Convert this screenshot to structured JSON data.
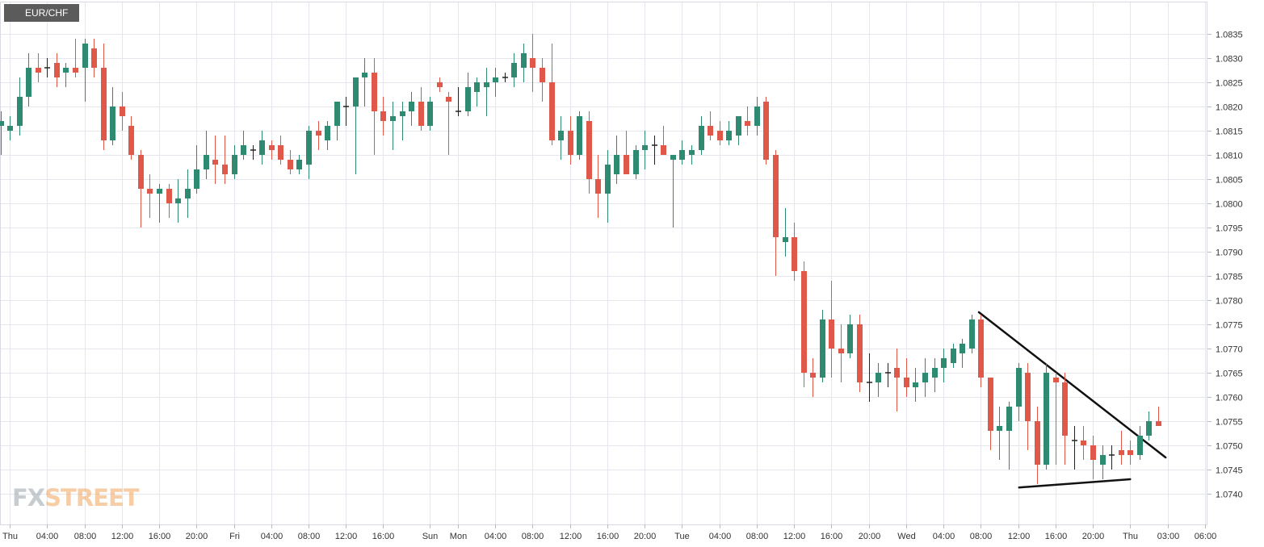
{
  "symbol": "EUR/CHF",
  "watermark": {
    "part1": "FX",
    "part2": "STREET"
  },
  "colors": {
    "up": "#2f8a72",
    "down": "#e0584a",
    "neutral": "#222222",
    "grid": "#e6e6ee",
    "trendline": "#111111"
  },
  "chart_data": {
    "type": "candlestick",
    "interval_hours": 1,
    "ylim": [
      1.0734,
      1.0841
    ],
    "y_ticks": [
      1.074,
      1.0745,
      1.075,
      1.0755,
      1.076,
      1.0765,
      1.077,
      1.0775,
      1.078,
      1.0785,
      1.079,
      1.0795,
      1.08,
      1.0805,
      1.081,
      1.0815,
      1.082,
      1.0825,
      1.083,
      1.0835
    ],
    "x_tick_labels": [
      {
        "index": 1,
        "label": "Thu"
      },
      {
        "index": 5,
        "label": "04:00"
      },
      {
        "index": 9,
        "label": "08:00"
      },
      {
        "index": 13,
        "label": "12:00"
      },
      {
        "index": 17,
        "label": "16:00"
      },
      {
        "index": 21,
        "label": "20:00"
      },
      {
        "index": 25,
        "label": "Fri"
      },
      {
        "index": 29,
        "label": "04:00"
      },
      {
        "index": 33,
        "label": "08:00"
      },
      {
        "index": 37,
        "label": "12:00"
      },
      {
        "index": 41,
        "label": "16:00"
      },
      {
        "index": 46,
        "label": "Sun"
      },
      {
        "index": 49,
        "label": "Mon"
      },
      {
        "index": 53,
        "label": "04:00"
      },
      {
        "index": 57,
        "label": "08:00"
      },
      {
        "index": 61,
        "label": "12:00"
      },
      {
        "index": 65,
        "label": "16:00"
      },
      {
        "index": 69,
        "label": "20:00"
      },
      {
        "index": 73,
        "label": "Tue"
      },
      {
        "index": 77,
        "label": "04:00"
      },
      {
        "index": 81,
        "label": "08:00"
      },
      {
        "index": 85,
        "label": "12:00"
      },
      {
        "index": 89,
        "label": "16:00"
      },
      {
        "index": 93,
        "label": "20:00"
      },
      {
        "index": 97,
        "label": "Wed"
      },
      {
        "index": 101,
        "label": "04:00"
      },
      {
        "index": 105,
        "label": "08:00"
      },
      {
        "index": 109,
        "label": "12:00"
      },
      {
        "index": 113,
        "label": "16:00"
      },
      {
        "index": 117,
        "label": "20:00"
      },
      {
        "index": 121,
        "label": "Thu"
      },
      {
        "index": 125,
        "label": "03:00"
      },
      {
        "index": 129,
        "label": "06:00"
      }
    ],
    "ohlc": [
      [
        1.0816,
        1.0819,
        1.081,
        1.0817
      ],
      [
        1.0815,
        1.0818,
        1.0813,
        1.0816
      ],
      [
        1.0816,
        1.0826,
        1.0814,
        1.0822
      ],
      [
        1.0822,
        1.0831,
        1.082,
        1.0828
      ],
      [
        1.0828,
        1.0831,
        1.0825,
        1.0827
      ],
      [
        1.0828,
        1.083,
        1.0826,
        1.0828
      ],
      [
        1.0829,
        1.0831,
        1.0824,
        1.0826
      ],
      [
        1.0827,
        1.0829,
        1.0824,
        1.0828
      ],
      [
        1.0828,
        1.0834,
        1.0826,
        1.0827
      ],
      [
        1.0828,
        1.0834,
        1.0821,
        1.0833
      ],
      [
        1.0832,
        1.0834,
        1.0826,
        1.0828
      ],
      [
        1.0828,
        1.0833,
        1.0811,
        1.0813
      ],
      [
        1.0813,
        1.0824,
        1.0812,
        1.082
      ],
      [
        1.082,
        1.0823,
        1.0815,
        1.0818
      ],
      [
        1.0816,
        1.0818,
        1.0809,
        1.081
      ],
      [
        1.081,
        1.0811,
        1.0795,
        1.0803
      ],
      [
        1.0803,
        1.0806,
        1.0797,
        1.0802
      ],
      [
        1.0802,
        1.0804,
        1.0796,
        1.0803
      ],
      [
        1.0803,
        1.0804,
        1.0797,
        1.08
      ],
      [
        1.08,
        1.0805,
        1.0796,
        1.0801
      ],
      [
        1.0801,
        1.0807,
        1.0797,
        1.0803
      ],
      [
        1.0803,
        1.0812,
        1.0802,
        1.0807
      ],
      [
        1.0807,
        1.0815,
        1.0805,
        1.081
      ],
      [
        1.0809,
        1.0814,
        1.0804,
        1.0808
      ],
      [
        1.0808,
        1.0814,
        1.0804,
        1.0806
      ],
      [
        1.0806,
        1.0812,
        1.0805,
        1.081
      ],
      [
        1.081,
        1.0815,
        1.0809,
        1.0812
      ],
      [
        1.0811,
        1.0812,
        1.0809,
        1.0811
      ],
      [
        1.081,
        1.0815,
        1.0808,
        1.0813
      ],
      [
        1.0812,
        1.0813,
        1.0809,
        1.0811
      ],
      [
        1.0812,
        1.0814,
        1.0808,
        1.0809
      ],
      [
        1.0809,
        1.0811,
        1.0806,
        1.0807
      ],
      [
        1.0807,
        1.081,
        1.0806,
        1.0809
      ],
      [
        1.0808,
        1.0816,
        1.0805,
        1.0815
      ],
      [
        1.0815,
        1.0817,
        1.0811,
        1.0814
      ],
      [
        1.0813,
        1.0817,
        1.0811,
        1.0816
      ],
      [
        1.0816,
        1.0821,
        1.0813,
        1.0821
      ],
      [
        1.082,
        1.0822,
        1.0816,
        1.082
      ],
      [
        1.082,
        1.0826,
        1.0806,
        1.0826
      ],
      [
        1.0826,
        1.083,
        1.082,
        1.0827
      ],
      [
        1.0827,
        1.083,
        1.081,
        1.0819
      ],
      [
        1.0819,
        1.0822,
        1.0814,
        1.0817
      ],
      [
        1.0817,
        1.0821,
        1.0811,
        1.0818
      ],
      [
        1.0818,
        1.0821,
        1.0813,
        1.0819
      ],
      [
        1.0819,
        1.0823,
        1.0816,
        1.0821
      ],
      [
        1.0821,
        1.0824,
        1.0815,
        1.0816
      ],
      [
        1.0816,
        1.0822,
        1.0815,
        1.0821
      ],
      [
        1.0825,
        1.0826,
        1.0823,
        1.0824
      ],
      [
        1.0822,
        1.0823,
        1.081,
        1.0821
      ],
      [
        1.0819,
        1.0824,
        1.0818,
        1.0819
      ],
      [
        1.0819,
        1.0827,
        1.0818,
        1.0824
      ],
      [
        1.0823,
        1.0826,
        1.082,
        1.0825
      ],
      [
        1.0824,
        1.0828,
        1.0818,
        1.0825
      ],
      [
        1.0825,
        1.0828,
        1.0822,
        1.0826
      ],
      [
        1.0826,
        1.0827,
        1.0825,
        1.0826
      ],
      [
        1.0826,
        1.0831,
        1.0824,
        1.0829
      ],
      [
        1.0828,
        1.0833,
        1.0825,
        1.0831
      ],
      [
        1.083,
        1.0835,
        1.0823,
        1.0828
      ],
      [
        1.0828,
        1.083,
        1.0821,
        1.0825
      ],
      [
        1.0825,
        1.0833,
        1.0812,
        1.0813
      ],
      [
        1.0813,
        1.0818,
        1.0809,
        1.0815
      ],
      [
        1.0815,
        1.0818,
        1.0808,
        1.081
      ],
      [
        1.081,
        1.0819,
        1.0809,
        1.0818
      ],
      [
        1.0817,
        1.0819,
        1.0802,
        1.0805
      ],
      [
        1.0805,
        1.081,
        1.0797,
        1.0802
      ],
      [
        1.0802,
        1.0811,
        1.0796,
        1.0808
      ],
      [
        1.0806,
        1.0814,
        1.0804,
        1.081
      ],
      [
        1.081,
        1.0815,
        1.0806,
        1.0806
      ],
      [
        1.0806,
        1.0812,
        1.0805,
        1.0811
      ],
      [
        1.0811,
        1.0815,
        1.0807,
        1.0812
      ],
      [
        1.0812,
        1.0814,
        1.0808,
        1.0812
      ],
      [
        1.0812,
        1.0816,
        1.081,
        1.081
      ],
      [
        1.0809,
        1.081,
        1.0795,
        1.081
      ],
      [
        1.0809,
        1.0813,
        1.0808,
        1.0811
      ],
      [
        1.081,
        1.0812,
        1.0808,
        1.0811
      ],
      [
        1.0811,
        1.0818,
        1.081,
        1.0816
      ],
      [
        1.0816,
        1.0819,
        1.0813,
        1.0814
      ],
      [
        1.0815,
        1.0817,
        1.0812,
        1.0813
      ],
      [
        1.0813,
        1.0817,
        1.0812,
        1.0815
      ],
      [
        1.0814,
        1.0818,
        1.0812,
        1.0818
      ],
      [
        1.0817,
        1.082,
        1.0814,
        1.0816
      ],
      [
        1.0816,
        1.0822,
        1.0814,
        1.082
      ],
      [
        1.0821,
        1.0822,
        1.0808,
        1.0809
      ],
      [
        1.081,
        1.0811,
        1.0785,
        1.0793
      ],
      [
        1.0792,
        1.0799,
        1.0789,
        1.0793
      ],
      [
        1.0793,
        1.0796,
        1.0784,
        1.0786
      ],
      [
        1.0786,
        1.0788,
        1.0762,
        1.0765
      ],
      [
        1.0765,
        1.0768,
        1.076,
        1.0764
      ],
      [
        1.0764,
        1.0778,
        1.0763,
        1.0776
      ],
      [
        1.0776,
        1.0784,
        1.0764,
        1.077
      ],
      [
        1.077,
        1.0775,
        1.0763,
        1.0769
      ],
      [
        1.0769,
        1.0777,
        1.0768,
        1.0775
      ],
      [
        1.0775,
        1.0777,
        1.0761,
        1.0763
      ],
      [
        1.0763,
        1.0769,
        1.0759,
        1.0763
      ],
      [
        1.0763,
        1.0767,
        1.076,
        1.0765
      ],
      [
        1.0765,
        1.0767,
        1.0762,
        1.0765
      ],
      [
        1.0766,
        1.077,
        1.0757,
        1.0764
      ],
      [
        1.0764,
        1.0768,
        1.076,
        1.0762
      ],
      [
        1.0762,
        1.0766,
        1.0759,
        1.0763
      ],
      [
        1.0763,
        1.0768,
        1.076,
        1.0765
      ],
      [
        1.0764,
        1.0768,
        1.0761,
        1.0766
      ],
      [
        1.0766,
        1.077,
        1.0763,
        1.0768
      ],
      [
        1.0767,
        1.0771,
        1.0766,
        1.077
      ],
      [
        1.0769,
        1.0772,
        1.0766,
        1.0771
      ],
      [
        1.077,
        1.0777,
        1.0769,
        1.0776
      ],
      [
        1.0776,
        1.0777,
        1.0762,
        1.0764
      ],
      [
        1.0764,
        1.0764,
        1.0749,
        1.0753
      ],
      [
        1.0753,
        1.0758,
        1.0747,
        1.0754
      ],
      [
        1.0753,
        1.0759,
        1.0745,
        1.0758
      ],
      [
        1.0758,
        1.0767,
        1.0755,
        1.0766
      ],
      [
        1.0765,
        1.0767,
        1.0749,
        1.0755
      ],
      [
        1.0755,
        1.0758,
        1.0742,
        1.0746
      ],
      [
        1.0746,
        1.0767,
        1.0745,
        1.0765
      ],
      [
        1.0764,
        1.0765,
        1.0746,
        1.0763
      ],
      [
        1.0763,
        1.0765,
        1.0746,
        1.0752
      ],
      [
        1.0751,
        1.0754,
        1.0745,
        1.0751
      ],
      [
        1.0751,
        1.0754,
        1.0747,
        1.075
      ],
      [
        1.075,
        1.0752,
        1.0743,
        1.0747
      ],
      [
        1.0746,
        1.075,
        1.0743,
        1.0748
      ],
      [
        1.0748,
        1.075,
        1.0745,
        1.0748
      ],
      [
        1.0749,
        1.0753,
        1.0746,
        1.0748
      ],
      [
        1.0749,
        1.0751,
        1.0746,
        1.0748
      ],
      [
        1.0748,
        1.0754,
        1.0747,
        1.0752
      ],
      [
        1.0752,
        1.0757,
        1.0751,
        1.0755
      ],
      [
        1.0755,
        1.0758,
        1.0754,
        1.0754
      ]
    ],
    "trendlines": [
      {
        "name": "descending-trendline",
        "start": {
          "index": 104.8,
          "price": 1.07775
        },
        "end": {
          "index": 124.8,
          "price": 1.07475
        }
      },
      {
        "name": "ascending-support-line",
        "start": {
          "index": 109.1,
          "price": 1.07413
        },
        "end": {
          "index": 121.0,
          "price": 1.0743
        }
      }
    ]
  }
}
